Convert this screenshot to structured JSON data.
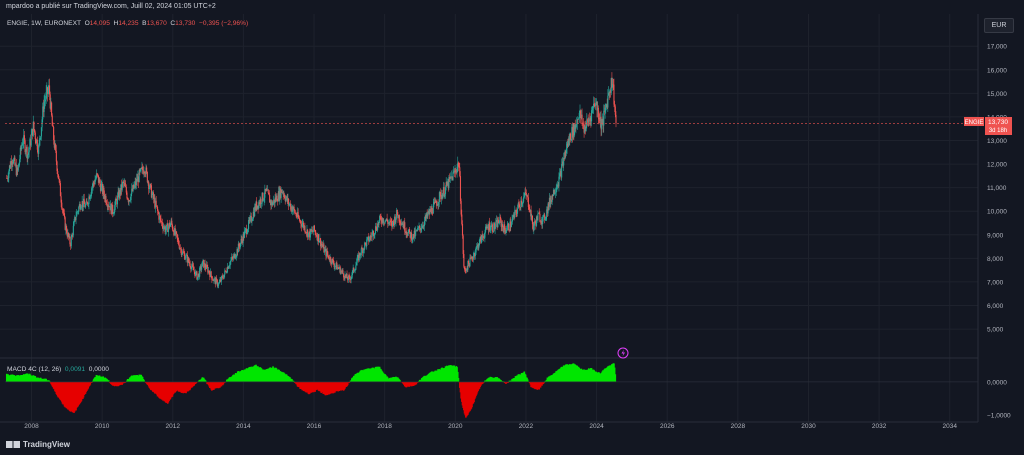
{
  "header": {
    "published_text": "mpardoo a publié sur TradingView.com, Juill 02, 2024 01:05 UTC+2",
    "currency_button": "EUR"
  },
  "legend": {
    "symbol": "ENGIE, 1W, EURONEXT",
    "o_label": "O",
    "o_value": "14,095",
    "h_label": "H",
    "h_value": "14,235",
    "b_label": "B",
    "b_value": "13,670",
    "c_label": "C",
    "c_value": "13,730",
    "change": "−0,395 (−2,96%)"
  },
  "price_tag": {
    "symbol": "ENGIE",
    "price": "13,730",
    "countdown": "3d 18h"
  },
  "macd_legend": {
    "name": "MACD 4C (12, 26)",
    "value1": "0,0091",
    "value2": "0,0000"
  },
  "footer": {
    "logo_text": "TradingView"
  },
  "colors": {
    "background": "#131722",
    "up": "#26a69a",
    "down": "#ef5350",
    "macd_pos": "#00e600",
    "macd_neg": "#e60000",
    "price_line": "#ef5350"
  },
  "chart_data": [
    {
      "type": "candlestick",
      "title": "ENGIE, 1W, EURONEXT",
      "yunit": "EUR",
      "ylim": [
        3.9,
        17.9
      ],
      "xlim": [
        2007.25,
        2034.8
      ],
      "y_ticks": [
        "5,000",
        "6,000",
        "7,000",
        "8,000",
        "9,000",
        "10,000",
        "11,000",
        "12,000",
        "13,000",
        "14,000",
        "15,000",
        "16,000",
        "17,000"
      ],
      "x_ticks": [
        "2008",
        "2010",
        "2012",
        "2014",
        "2016",
        "2018",
        "2020",
        "2022",
        "2024",
        "2026",
        "2028",
        "2030",
        "2032",
        "2034"
      ],
      "last_price": 13.73,
      "grid": true,
      "series_path": [
        [
          2007.3,
          11.4
        ],
        [
          2007.45,
          12.3
        ],
        [
          2007.6,
          11.6
        ],
        [
          2007.75,
          13.1
        ],
        [
          2007.9,
          12.4
        ],
        [
          2008.05,
          13.6
        ],
        [
          2008.2,
          12.6
        ],
        [
          2008.35,
          14.6
        ],
        [
          2008.5,
          15.2
        ],
        [
          2008.6,
          13.4
        ],
        [
          2008.75,
          11.6
        ],
        [
          2008.85,
          10.4
        ],
        [
          2008.95,
          9.4
        ],
        [
          2009.1,
          8.6
        ],
        [
          2009.25,
          9.8
        ],
        [
          2009.4,
          10.4
        ],
        [
          2009.55,
          10.2
        ],
        [
          2009.7,
          11.0
        ],
        [
          2009.85,
          11.5
        ],
        [
          2010.0,
          10.9
        ],
        [
          2010.15,
          10.4
        ],
        [
          2010.3,
          10.0
        ],
        [
          2010.45,
          10.6
        ],
        [
          2010.6,
          11.2
        ],
        [
          2010.75,
          10.5
        ],
        [
          2010.9,
          11.0
        ],
        [
          2011.05,
          11.5
        ],
        [
          2011.2,
          11.9
        ],
        [
          2011.35,
          11.0
        ],
        [
          2011.5,
          10.3
        ],
        [
          2011.65,
          9.6
        ],
        [
          2011.8,
          9.2
        ],
        [
          2011.95,
          9.5
        ],
        [
          2012.1,
          8.9
        ],
        [
          2012.25,
          8.3
        ],
        [
          2012.4,
          8.0
        ],
        [
          2012.55,
          7.6
        ],
        [
          2012.7,
          7.2
        ],
        [
          2012.85,
          7.8
        ],
        [
          2013.0,
          7.5
        ],
        [
          2013.15,
          7.1
        ],
        [
          2013.3,
          6.9
        ],
        [
          2013.45,
          7.3
        ],
        [
          2013.6,
          7.8
        ],
        [
          2013.75,
          8.1
        ],
        [
          2013.9,
          8.6
        ],
        [
          2014.05,
          9.1
        ],
        [
          2014.2,
          9.6
        ],
        [
          2014.35,
          10.2
        ],
        [
          2014.5,
          10.5
        ],
        [
          2014.65,
          10.8
        ],
        [
          2014.8,
          10.3
        ],
        [
          2014.95,
          10.6
        ],
        [
          2015.1,
          10.9
        ],
        [
          2015.25,
          10.4
        ],
        [
          2015.4,
          10.1
        ],
        [
          2015.55,
          9.7
        ],
        [
          2015.7,
          9.4
        ],
        [
          2015.85,
          9.0
        ],
        [
          2016.0,
          9.2
        ],
        [
          2016.15,
          8.8
        ],
        [
          2016.3,
          8.3
        ],
        [
          2016.45,
          8.0
        ],
        [
          2016.6,
          7.7
        ],
        [
          2016.75,
          7.5
        ],
        [
          2016.9,
          7.2
        ],
        [
          2017.0,
          7.1
        ],
        [
          2017.15,
          7.6
        ],
        [
          2017.3,
          8.2
        ],
        [
          2017.45,
          8.6
        ],
        [
          2017.6,
          8.9
        ],
        [
          2017.75,
          9.3
        ],
        [
          2017.9,
          9.7
        ],
        [
          2018.05,
          9.6
        ],
        [
          2018.2,
          9.4
        ],
        [
          2018.35,
          9.9
        ],
        [
          2018.5,
          9.5
        ],
        [
          2018.65,
          9.1
        ],
        [
          2018.8,
          8.9
        ],
        [
          2018.95,
          9.2
        ],
        [
          2019.1,
          9.5
        ],
        [
          2019.25,
          9.9
        ],
        [
          2019.4,
          10.2
        ],
        [
          2019.55,
          10.6
        ],
        [
          2019.7,
          10.9
        ],
        [
          2019.85,
          11.3
        ],
        [
          2020.0,
          11.7
        ],
        [
          2020.1,
          12.1
        ],
        [
          2020.18,
          9.6
        ],
        [
          2020.25,
          7.4
        ],
        [
          2020.35,
          7.7
        ],
        [
          2020.5,
          8.1
        ],
        [
          2020.65,
          8.6
        ],
        [
          2020.8,
          9.0
        ],
        [
          2020.95,
          9.4
        ],
        [
          2021.1,
          9.3
        ],
        [
          2021.25,
          9.6
        ],
        [
          2021.4,
          9.2
        ],
        [
          2021.55,
          9.4
        ],
        [
          2021.7,
          9.9
        ],
        [
          2021.85,
          10.4
        ],
        [
          2022.0,
          10.7
        ],
        [
          2022.1,
          10.2
        ],
        [
          2022.2,
          9.3
        ],
        [
          2022.35,
          9.8
        ],
        [
          2022.5,
          9.6
        ],
        [
          2022.65,
          10.3
        ],
        [
          2022.8,
          10.9
        ],
        [
          2022.95,
          11.4
        ],
        [
          2023.1,
          12.4
        ],
        [
          2023.25,
          13.2
        ],
        [
          2023.4,
          13.6
        ],
        [
          2023.5,
          14.2
        ],
        [
          2023.65,
          13.5
        ],
        [
          2023.8,
          13.9
        ],
        [
          2023.95,
          14.7
        ],
        [
          2024.05,
          14.2
        ],
        [
          2024.15,
          13.6
        ],
        [
          2024.25,
          14.3
        ],
        [
          2024.35,
          15.1
        ],
        [
          2024.45,
          15.6
        ],
        [
          2024.55,
          13.7
        ]
      ]
    },
    {
      "type": "histogram",
      "title": "MACD 4C (12, 26)",
      "ylim": [
        -1.15,
        0.6
      ],
      "y_ticks": [
        "0,0000",
        "−1,0000"
      ],
      "series_path": [
        [
          2007.3,
          0.22
        ],
        [
          2007.6,
          0.18
        ],
        [
          2007.9,
          0.25
        ],
        [
          2008.2,
          0.12
        ],
        [
          2008.5,
          0.05
        ],
        [
          2008.7,
          -0.35
        ],
        [
          2008.95,
          -0.75
        ],
        [
          2009.2,
          -0.95
        ],
        [
          2009.45,
          -0.5
        ],
        [
          2009.65,
          -0.1
        ],
        [
          2009.85,
          0.2
        ],
        [
          2010.1,
          0.12
        ],
        [
          2010.35,
          -0.15
        ],
        [
          2010.6,
          -0.05
        ],
        [
          2010.85,
          0.18
        ],
        [
          2011.1,
          0.2
        ],
        [
          2011.35,
          -0.2
        ],
        [
          2011.6,
          -0.45
        ],
        [
          2011.85,
          -0.65
        ],
        [
          2012.1,
          -0.25
        ],
        [
          2012.35,
          -0.35
        ],
        [
          2012.6,
          -0.12
        ],
        [
          2012.85,
          0.15
        ],
        [
          2013.1,
          -0.25
        ],
        [
          2013.35,
          -0.15
        ],
        [
          2013.6,
          0.12
        ],
        [
          2013.85,
          0.3
        ],
        [
          2014.1,
          0.4
        ],
        [
          2014.35,
          0.5
        ],
        [
          2014.6,
          0.35
        ],
        [
          2014.85,
          0.45
        ],
        [
          2015.1,
          0.3
        ],
        [
          2015.35,
          0.1
        ],
        [
          2015.6,
          -0.2
        ],
        [
          2015.85,
          -0.35
        ],
        [
          2016.1,
          -0.25
        ],
        [
          2016.35,
          -0.4
        ],
        [
          2016.6,
          -0.3
        ],
        [
          2016.85,
          -0.25
        ],
        [
          2017.1,
          0.15
        ],
        [
          2017.35,
          0.35
        ],
        [
          2017.6,
          0.4
        ],
        [
          2017.85,
          0.45
        ],
        [
          2018.1,
          0.1
        ],
        [
          2018.35,
          0.15
        ],
        [
          2018.6,
          -0.15
        ],
        [
          2018.85,
          -0.1
        ],
        [
          2019.1,
          0.15
        ],
        [
          2019.35,
          0.3
        ],
        [
          2019.6,
          0.4
        ],
        [
          2019.85,
          0.5
        ],
        [
          2020.05,
          0.45
        ],
        [
          2020.18,
          -0.6
        ],
        [
          2020.3,
          -1.1
        ],
        [
          2020.45,
          -0.8
        ],
        [
          2020.7,
          -0.15
        ],
        [
          2020.95,
          0.15
        ],
        [
          2021.2,
          0.12
        ],
        [
          2021.45,
          -0.05
        ],
        [
          2021.7,
          0.15
        ],
        [
          2021.95,
          0.3
        ],
        [
          2022.15,
          -0.15
        ],
        [
          2022.35,
          -0.25
        ],
        [
          2022.6,
          0.1
        ],
        [
          2022.85,
          0.3
        ],
        [
          2023.1,
          0.5
        ],
        [
          2023.35,
          0.55
        ],
        [
          2023.6,
          0.35
        ],
        [
          2023.85,
          0.4
        ],
        [
          2024.1,
          0.25
        ],
        [
          2024.3,
          0.45
        ],
        [
          2024.5,
          0.55
        ],
        [
          2024.55,
          0.01
        ]
      ]
    }
  ]
}
